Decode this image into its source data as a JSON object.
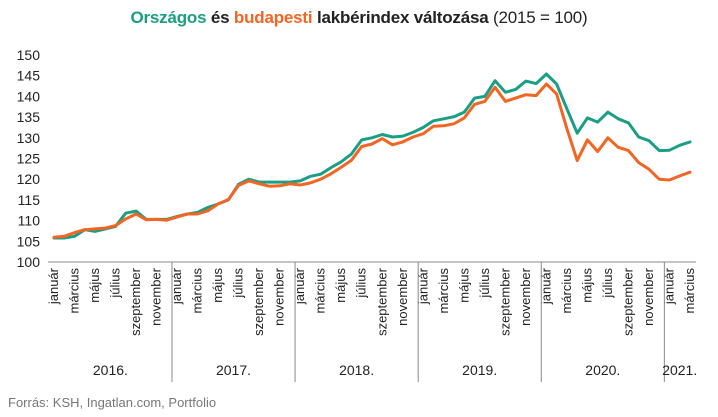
{
  "colors": {
    "orszagos": "#1a9e84",
    "budapest": "#f26522",
    "axis": "#888888",
    "text": "#222222",
    "source": "#777777"
  },
  "title": {
    "part1": "Országos",
    "part2": " és ",
    "part3": "budapesti",
    "part4": " lakbérindex változása",
    "part5": " (2015 = 100)"
  },
  "source": "Forrás: KSH, Ingatlan.com, Portfolio",
  "chart_data": {
    "type": "line",
    "title": "Országos és budapesti lakbérindex változása (2015 = 100)",
    "ylim": [
      100,
      150
    ],
    "yticks": [
      100,
      105,
      110,
      115,
      120,
      125,
      130,
      135,
      140,
      145,
      150
    ],
    "grid": false,
    "x_tick_labels": [
      "január",
      "március",
      "május",
      "július",
      "szeptember",
      "november",
      "január",
      "március",
      "május",
      "július",
      "szeptember",
      "november",
      "január",
      "március",
      "május",
      "július",
      "szeptember",
      "november",
      "január",
      "március",
      "május",
      "július",
      "szeptember",
      "november",
      "január",
      "március",
      "május",
      "július",
      "szeptember",
      "november",
      "január",
      "március"
    ],
    "years": [
      "2016.",
      "2017.",
      "2018.",
      "2019.",
      "2020.",
      "2021."
    ],
    "series": [
      {
        "name": "Országos",
        "color": "#1a9e84",
        "values": [
          105.8,
          105.8,
          106.2,
          107.8,
          107.4,
          108.0,
          108.6,
          111.8,
          112.3,
          110.3,
          110.3,
          110.3,
          111.0,
          111.6,
          112.0,
          113.2,
          114.0,
          115.0,
          118.8,
          120.0,
          119.3,
          119.3,
          119.3,
          119.3,
          119.6,
          120.7,
          121.2,
          122.8,
          124.2,
          126.1,
          129.5,
          130.0,
          130.8,
          130.2,
          130.4,
          131.3,
          132.5,
          134.1,
          134.6,
          135.1,
          136.2,
          139.6,
          140.0,
          143.8,
          141.0,
          141.7,
          143.7,
          143.1,
          145.4,
          143.0,
          137.0,
          131.1,
          134.8,
          133.8,
          136.2,
          134.6,
          133.6,
          130.2,
          129.3,
          126.9,
          127.0,
          128.2,
          129.0
        ]
      },
      {
        "name": "budapesti",
        "color": "#f26522",
        "values": [
          106.0,
          106.2,
          107.1,
          107.8,
          108.0,
          108.2,
          108.8,
          110.4,
          111.6,
          110.2,
          110.3,
          110.1,
          110.9,
          111.6,
          111.6,
          112.4,
          114.0,
          115.1,
          118.5,
          119.6,
          118.9,
          118.3,
          118.4,
          118.9,
          118.6,
          119.1,
          120.0,
          121.3,
          122.9,
          124.6,
          127.9,
          128.5,
          129.8,
          128.3,
          129.0,
          130.2,
          131.0,
          132.8,
          132.9,
          133.4,
          134.8,
          138.1,
          138.8,
          142.2,
          138.8,
          139.6,
          140.4,
          140.2,
          143.0,
          140.6,
          132.2,
          124.5,
          129.5,
          126.7,
          130.0,
          127.7,
          126.9,
          124.0,
          122.4,
          120.0,
          119.8,
          120.8,
          121.7
        ]
      }
    ]
  }
}
